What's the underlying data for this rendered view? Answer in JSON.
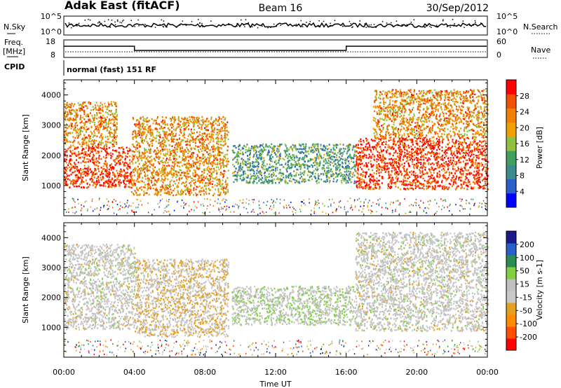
{
  "header": {
    "station": "Adak East (fitACF)",
    "beam": "Beam 16",
    "date": "30/Sep/2012"
  },
  "top_panels": {
    "noise_left_label": "N.Sky",
    "noise_right_label": "N.Search",
    "noise_ticks_left": [
      "10^5",
      "10^0"
    ],
    "noise_ticks_right": [
      "10^5",
      "10^0"
    ],
    "freq_label_line1": "Freq.",
    "freq_label_line2": "[MHz]",
    "freq_ticks": [
      "18",
      "8"
    ],
    "nave_label": "Nave",
    "nave_ticks": [
      "60",
      "0"
    ],
    "cpid_label": "CPID",
    "cpid_text": "normal (fast) 151 RF"
  },
  "colors": {
    "power_scale": [
      "#0000ff",
      "#2a5ec8",
      "#3c8c8c",
      "#40a060",
      "#90c040",
      "#f0a000",
      "#f08000",
      "#f05000",
      "#ff0000"
    ],
    "velocity_scale": [
      "#ff0000",
      "#ff5000",
      "#ff8c00",
      "#e6a020",
      "#c8c8c8",
      "#c0c0c0",
      "#80d040",
      "#2a8c50",
      "#2a5ec8",
      "#1a1a8c"
    ]
  },
  "chart_data": [
    {
      "type": "heatmap",
      "name": "power",
      "ylabel": "Slant Range [km]",
      "ytick_labels": [
        "1000",
        "2000",
        "3000",
        "4000"
      ],
      "ylim": [
        0,
        4500
      ],
      "colorbar_label": "Power [dB]",
      "colorbar_ticks": [
        "4",
        "8",
        "12",
        "16",
        "20",
        "24",
        "28"
      ],
      "colorbar_range": [
        0,
        32
      ],
      "regions": [
        {
          "t": [
            0.0,
            3.8
          ],
          "range": [
            950,
            2300
          ],
          "value": 28
        },
        {
          "t": [
            0.0,
            3.0
          ],
          "range": [
            2300,
            3800
          ],
          "value": 22
        },
        {
          "t": [
            3.8,
            9.3
          ],
          "range": [
            700,
            3300
          ],
          "value": 22
        },
        {
          "t": [
            9.5,
            16.5
          ],
          "range": [
            1100,
            2400
          ],
          "value": 12
        },
        {
          "t": [
            16.5,
            24.0
          ],
          "range": [
            900,
            2600
          ],
          "value": 28
        },
        {
          "t": [
            17.5,
            24.0
          ],
          "range": [
            2600,
            4200
          ],
          "value": 22
        }
      ]
    },
    {
      "type": "heatmap",
      "name": "velocity",
      "ylabel": "Slant Range [km]",
      "ytick_labels": [
        "1000",
        "2000",
        "3000",
        "4000"
      ],
      "ylim": [
        0,
        4500
      ],
      "colorbar_label": "Velocity [m s-1]",
      "colorbar_ticks": [
        "200",
        "100",
        "50",
        "15",
        "-15",
        "-50",
        "-100",
        "-200"
      ],
      "colorbar_range": [
        -250,
        250
      ],
      "regions": [
        {
          "t": [
            0.0,
            4.0
          ],
          "range": [
            950,
            3800
          ],
          "value": 0
        },
        {
          "t": [
            4.0,
            9.3
          ],
          "range": [
            700,
            3300
          ],
          "value": -40
        },
        {
          "t": [
            9.5,
            16.5
          ],
          "range": [
            1100,
            2400
          ],
          "value": 30
        },
        {
          "t": [
            16.5,
            24.0
          ],
          "range": [
            900,
            4200
          ],
          "value": 0
        }
      ]
    }
  ],
  "xaxis": {
    "tick_labels": [
      "00:00",
      "04:00",
      "08:00",
      "12:00",
      "16:00",
      "20:00",
      "00:00"
    ],
    "label": "Time UT",
    "range_hours": [
      0,
      24
    ]
  }
}
